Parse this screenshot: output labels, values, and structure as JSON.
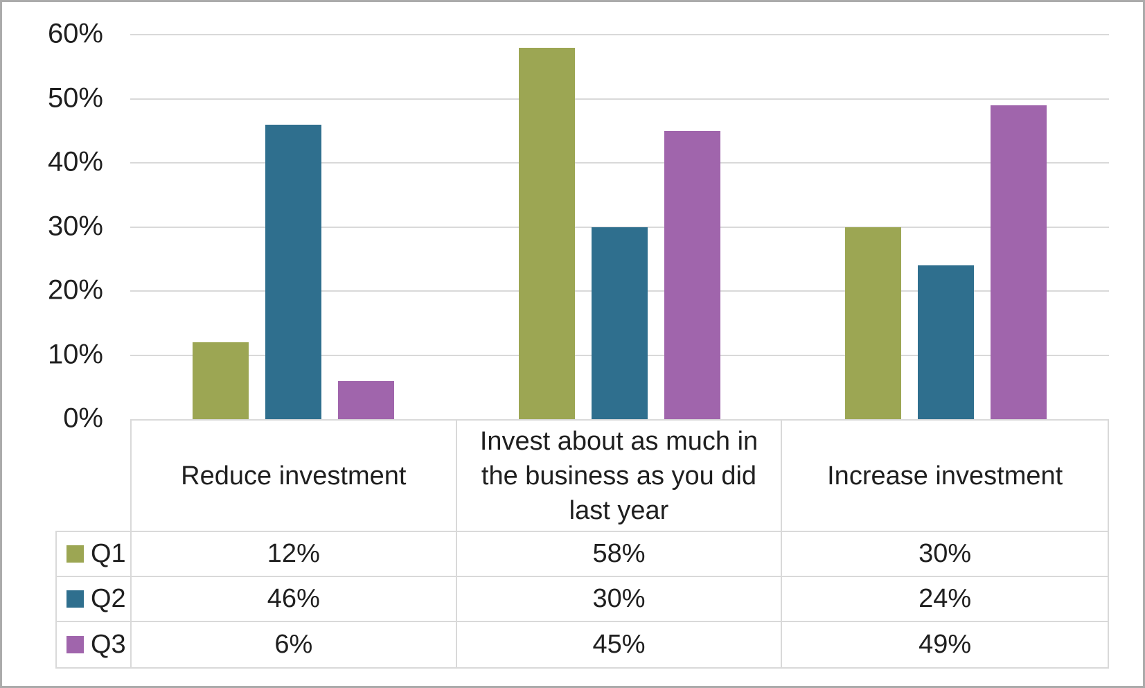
{
  "chart_data": {
    "type": "bar",
    "title": "",
    "xlabel": "",
    "ylabel": "",
    "ylim": [
      0,
      60
    ],
    "grid": true,
    "legend_position": "data-table-left",
    "yticks": [
      {
        "value": 0,
        "label": "0%"
      },
      {
        "value": 10,
        "label": "10%"
      },
      {
        "value": 20,
        "label": "20%"
      },
      {
        "value": 30,
        "label": "30%"
      },
      {
        "value": 40,
        "label": "40%"
      },
      {
        "value": 50,
        "label": "50%"
      },
      {
        "value": 60,
        "label": "60%"
      }
    ],
    "categories": [
      "Reduce investment",
      "Invest about as much in the business as you did last year",
      "Increase investment"
    ],
    "series": [
      {
        "name": "Q1",
        "color": "#9CA653",
        "values": [
          12,
          58,
          30
        ],
        "display": [
          "12%",
          "58%",
          "30%"
        ]
      },
      {
        "name": "Q2",
        "color": "#2F6F8E",
        "values": [
          46,
          30,
          24
        ],
        "display": [
          "46%",
          "30%",
          "24%"
        ]
      },
      {
        "name": "Q3",
        "color": "#A065AC",
        "values": [
          6,
          45,
          49
        ],
        "display": [
          "6%",
          "45%",
          "49%"
        ]
      }
    ]
  },
  "style": {
    "gridline_color": "#d9d9d9",
    "table_border_color": "#d9d9d9",
    "frame_color": "#ababab",
    "text_color": "#1f1f1f",
    "background": "#ffffff"
  }
}
